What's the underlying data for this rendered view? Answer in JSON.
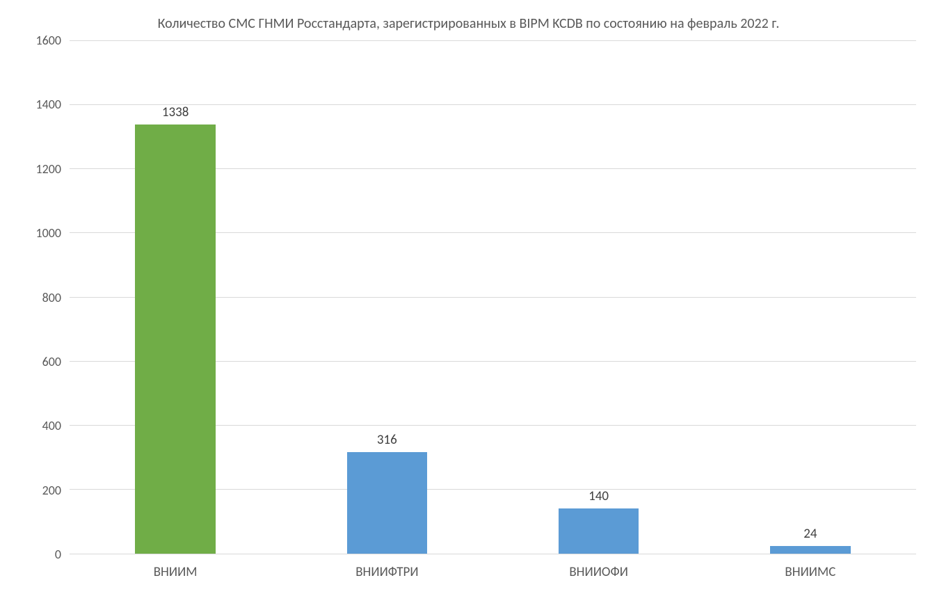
{
  "chart": {
    "type": "bar",
    "title": "Количество CMC ГНМИ Росстандарта, зарегистрированных в BIPM KCDB по состоянию на февраль 2022 г.",
    "title_color": "#595959",
    "title_fontsize": 20,
    "categories": [
      "ВНИИМ",
      "ВНИИФТРИ",
      "ВНИИОФИ",
      "ВНИИМС"
    ],
    "values": [
      1338,
      316,
      140,
      24
    ],
    "bar_colors": [
      "#70ad47",
      "#5b9bd5",
      "#5b9bd5",
      "#5b9bd5"
    ],
    "ylim": [
      0,
      1600
    ],
    "ytick_step": 200,
    "yticks": [
      1600,
      1400,
      1200,
      1000,
      800,
      600,
      400,
      200,
      0
    ],
    "background_color": "#ffffff",
    "grid_color": "#d9d9d9",
    "axis_label_color": "#595959",
    "axis_label_fontsize": 18,
    "data_label_color": "#404040",
    "data_label_fontsize": 19,
    "bar_width_pct": 38
  }
}
